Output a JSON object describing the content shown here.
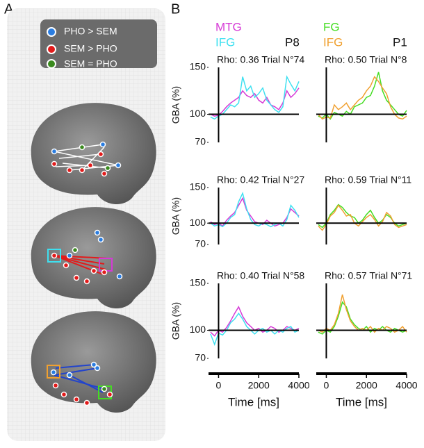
{
  "panel_labels": [
    "A",
    "B"
  ],
  "legend": [
    {
      "label": "PHO > SEM"
    },
    {
      "label": "SEM > PHO"
    },
    {
      "label": "SEM = PHO"
    }
  ],
  "chart_data": [
    {
      "type": "line",
      "title": "Rho: 0.36 Trial N°74",
      "label": "P8",
      "ylabel": "GBA (%)",
      "x": [
        -400,
        -200,
        0,
        200,
        400,
        600,
        800,
        1000,
        1200,
        1400,
        1600,
        1800,
        2000,
        2200,
        2400,
        2600,
        2800,
        3000,
        3200,
        3400,
        3600,
        3800,
        4000
      ],
      "series": [
        {
          "name": "MTG",
          "color": "#d63ad6",
          "values": [
            100,
            98,
            99,
            103,
            108,
            112,
            115,
            118,
            125,
            120,
            118,
            122,
            115,
            112,
            118,
            110,
            108,
            105,
            112,
            125,
            118,
            122,
            128
          ]
        },
        {
          "name": "IFG",
          "color": "#3ee0f0",
          "values": [
            97,
            95,
            98,
            100,
            105,
            110,
            108,
            112,
            140,
            125,
            130,
            118,
            122,
            128,
            115,
            110,
            105,
            102,
            108,
            140,
            132,
            125,
            135
          ]
        }
      ],
      "xlim": [
        -500,
        4000
      ],
      "ylim": [
        70,
        150
      ],
      "yticks": [
        70,
        100,
        150
      ],
      "baseline": 100,
      "vline": 0
    },
    {
      "type": "line",
      "title": "Rho: 0.50 Trial N°8",
      "label": "P1",
      "x": [
        -400,
        -200,
        0,
        200,
        400,
        600,
        800,
        1000,
        1200,
        1400,
        1600,
        1800,
        2000,
        2200,
        2400,
        2600,
        2800,
        3000,
        3200,
        3400,
        3600,
        3800,
        4000
      ],
      "series": [
        {
          "name": "FG",
          "color": "#44dd22",
          "values": [
            98,
            96,
            100,
            95,
            102,
            100,
            98,
            103,
            100,
            108,
            110,
            112,
            118,
            120,
            130,
            145,
            125,
            115,
            110,
            105,
            100,
            98,
            104
          ]
        },
        {
          "name": "IFG",
          "color": "#f0a030",
          "values": [
            100,
            95,
            97,
            96,
            110,
            105,
            108,
            112,
            105,
            110,
            115,
            118,
            125,
            130,
            140,
            135,
            128,
            122,
            108,
            100,
            96,
            95,
            98
          ]
        }
      ],
      "xlim": [
        -500,
        4000
      ],
      "ylim": [
        70,
        150
      ],
      "baseline": 100,
      "vline": 0
    },
    {
      "type": "line",
      "title": "Rho: 0.42 Trial N°27",
      "ylabel": "GBA (%)",
      "x": [
        -400,
        -200,
        0,
        200,
        400,
        600,
        800,
        1000,
        1200,
        1400,
        1600,
        1800,
        2000,
        2200,
        2400,
        2600,
        2800,
        3000,
        3200,
        3400,
        3600,
        3800,
        4000
      ],
      "series": [
        {
          "color": "#d63ad6",
          "values": [
            102,
            98,
            100,
            96,
            104,
            110,
            115,
            125,
            135,
            118,
            110,
            102,
            100,
            98,
            104,
            100,
            96,
            98,
            100,
            108,
            120,
            115,
            110
          ]
        },
        {
          "color": "#3ee0f0",
          "values": [
            100,
            96,
            98,
            95,
            100,
            108,
            112,
            130,
            142,
            120,
            105,
            98,
            96,
            100,
            98,
            95,
            98,
            100,
            96,
            105,
            125,
            118,
            108
          ]
        }
      ],
      "xlim": [
        -500,
        4000
      ],
      "ylim": [
        70,
        150
      ],
      "yticks": [
        70,
        100,
        150
      ],
      "baseline": 100,
      "vline": 0
    },
    {
      "type": "line",
      "title": "Rho: 0.59 Trial N°11",
      "x": [
        -400,
        -200,
        0,
        200,
        400,
        600,
        800,
        1000,
        1200,
        1400,
        1600,
        1800,
        2000,
        2200,
        2400,
        2600,
        2800,
        3000,
        3200,
        3400,
        3600,
        3800,
        4000
      ],
      "series": [
        {
          "color": "#44dd22",
          "values": [
            98,
            94,
            100,
            112,
            118,
            126,
            122,
            115,
            110,
            108,
            100,
            104,
            112,
            118,
            108,
            100,
            104,
            112,
            108,
            100,
            96,
            98,
            100
          ]
        },
        {
          "color": "#f0a030",
          "values": [
            96,
            90,
            98,
            110,
            115,
            125,
            118,
            110,
            112,
            100,
            96,
            102,
            108,
            112,
            105,
            96,
            102,
            115,
            110,
            98,
            94,
            96,
            98
          ]
        }
      ],
      "xlim": [
        -500,
        4000
      ],
      "ylim": [
        70,
        150
      ],
      "baseline": 100,
      "vline": 0
    },
    {
      "type": "line",
      "title": "Rho: 0.40 Trial N°58",
      "ylabel": "GBA (%)",
      "xlabel": "Time [ms]",
      "x": [
        -400,
        -200,
        0,
        200,
        400,
        600,
        800,
        1000,
        1200,
        1400,
        1600,
        1800,
        2000,
        2200,
        2400,
        2600,
        2800,
        3000,
        3200,
        3400,
        3600,
        3800,
        4000
      ],
      "series": [
        {
          "color": "#d63ad6",
          "values": [
            98,
            94,
            100,
            98,
            103,
            110,
            118,
            125,
            115,
            108,
            104,
            100,
            102,
            98,
            100,
            104,
            102,
            98,
            100,
            104,
            102,
            100,
            102
          ]
        },
        {
          "color": "#3ee0f0",
          "values": [
            96,
            85,
            97,
            95,
            100,
            108,
            112,
            118,
            112,
            104,
            100,
            96,
            100,
            102,
            98,
            100,
            96,
            100,
            98,
            102,
            104,
            98,
            100
          ]
        }
      ],
      "xlim": [
        -500,
        4000
      ],
      "xticks": [
        0,
        2000,
        4000
      ],
      "ylim": [
        70,
        150
      ],
      "yticks": [
        70,
        100,
        150
      ],
      "baseline": 100,
      "vline": 0
    },
    {
      "type": "line",
      "title": "Rho: 0.57 Trial N°71",
      "xlabel": "Time [ms]",
      "x": [
        -400,
        -200,
        0,
        200,
        400,
        600,
        800,
        1000,
        1200,
        1400,
        1600,
        1800,
        2000,
        2200,
        2400,
        2600,
        2800,
        3000,
        3200,
        3400,
        3600,
        3800,
        4000
      ],
      "series": [
        {
          "color": "#44dd22",
          "values": [
            98,
            96,
            100,
            98,
            104,
            115,
            130,
            125,
            112,
            106,
            102,
            100,
            104,
            98,
            102,
            100,
            104,
            100,
            98,
            102,
            100,
            98,
            100
          ]
        },
        {
          "color": "#f0a030",
          "values": [
            100,
            98,
            102,
            100,
            106,
            118,
            138,
            122,
            110,
            104,
            100,
            102,
            100,
            104,
            98,
            102,
            100,
            104,
            102,
            98,
            100,
            104,
            98
          ]
        }
      ],
      "xlim": [
        -500,
        4000
      ],
      "xticks": [
        0,
        2000,
        4000
      ],
      "ylim": [
        70,
        150
      ],
      "baseline": 100,
      "vline": 0
    }
  ]
}
